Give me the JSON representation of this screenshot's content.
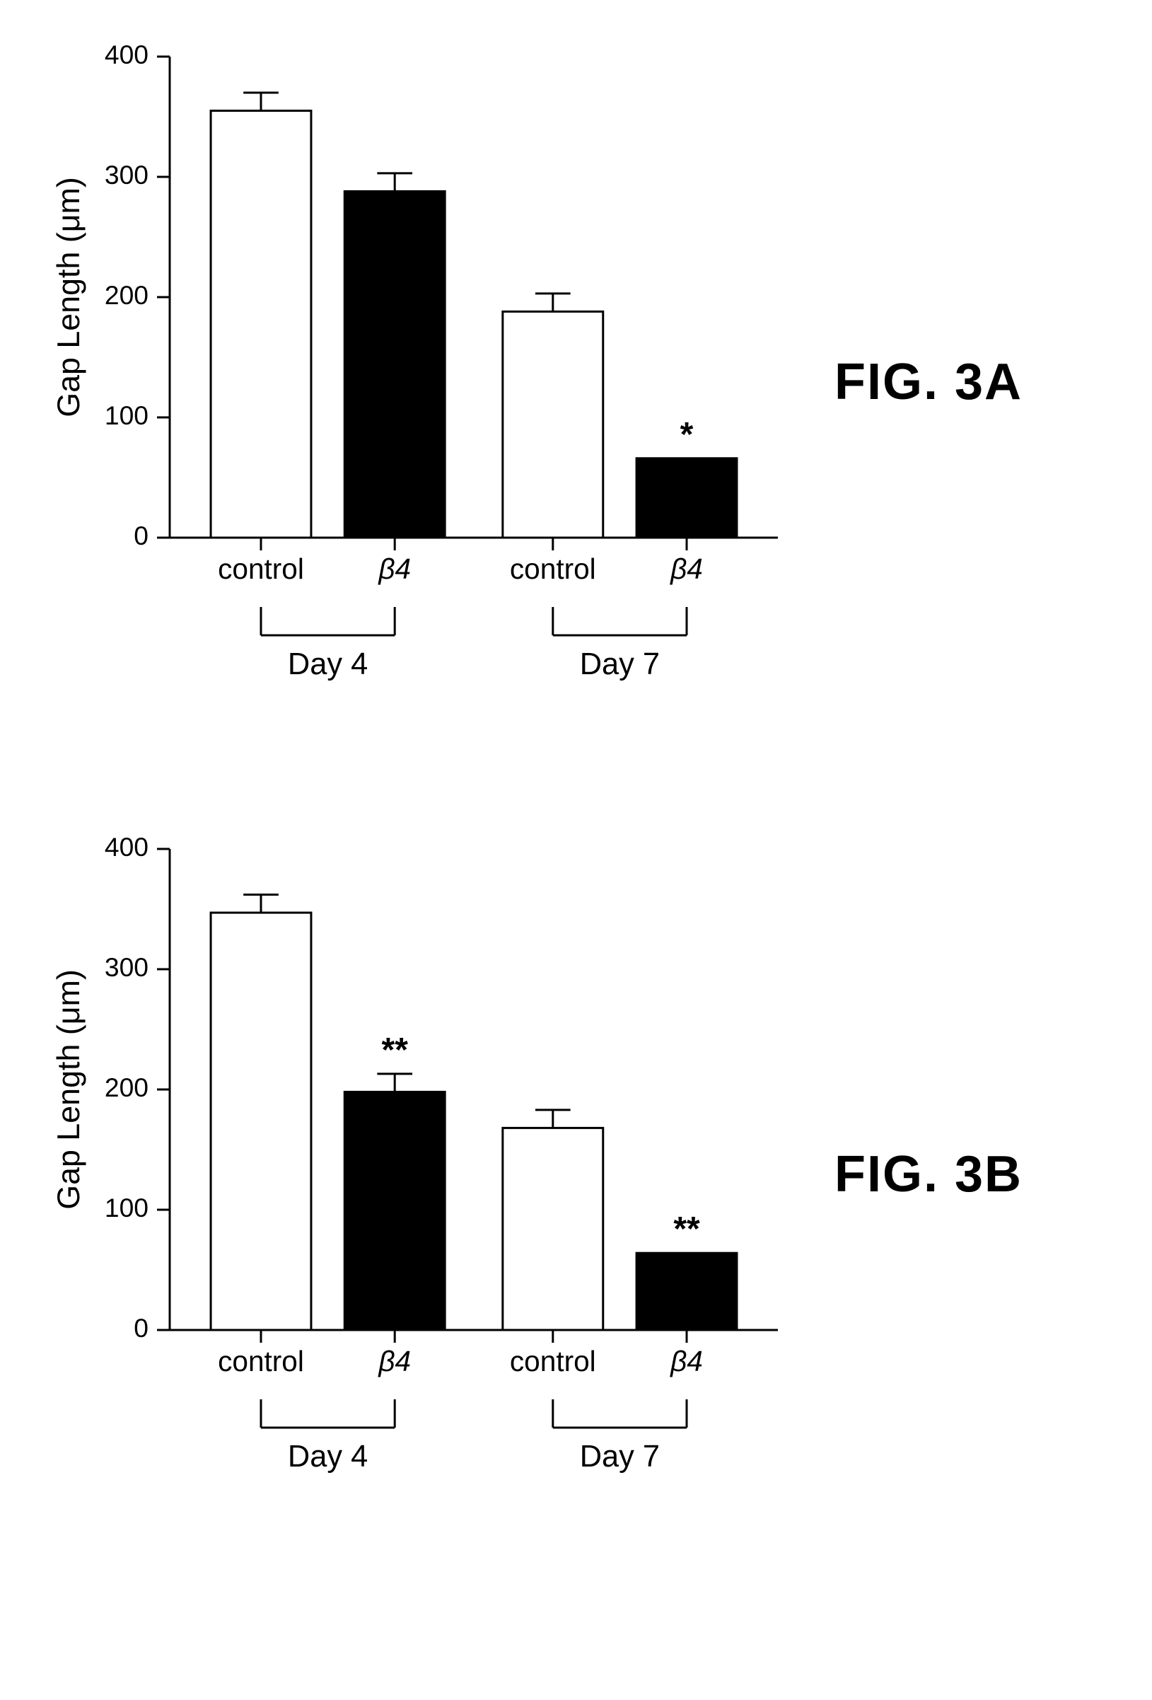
{
  "page": {
    "background_color": "#ffffff",
    "ink_color": "#000000",
    "font_family": "Helvetica, Arial, sans-serif"
  },
  "panels": [
    {
      "id": "A",
      "figure_label": "FIG. 3A",
      "chart": {
        "type": "bar",
        "ylabel": "Gap Length (μm)",
        "label_fontsize_pt": 28,
        "tick_fontsize_pt": 28,
        "ylim": [
          0,
          400
        ],
        "yticks": [
          0,
          100,
          200,
          300,
          400
        ],
        "bar_border_color": "#000000",
        "bar_border_width": 3,
        "axis_line_width": 3,
        "background_color": "#ffffff",
        "bars": [
          {
            "group": "Day 4",
            "label": "control",
            "value": 355,
            "error": 15,
            "fill_color": "#ffffff",
            "annotation": ""
          },
          {
            "group": "Day 4",
            "label": "β4",
            "value": 288,
            "error": 15,
            "fill_color": "#000000",
            "annotation": ""
          },
          {
            "group": "Day 7",
            "label": "control",
            "value": 188,
            "error": 15,
            "fill_color": "#ffffff",
            "annotation": ""
          },
          {
            "group": "Day 7",
            "label": "β4",
            "value": 66,
            "error": 0,
            "fill_color": "#000000",
            "annotation": "*"
          }
        ],
        "group_labels": [
          "Day 4",
          "Day 7"
        ],
        "annotation_fontsize_pt": 30
      }
    },
    {
      "id": "B",
      "figure_label": "FIG. 3B",
      "chart": {
        "type": "bar",
        "ylabel": "Gap Length (μm)",
        "label_fontsize_pt": 28,
        "tick_fontsize_pt": 28,
        "ylim": [
          0,
          400
        ],
        "yticks": [
          0,
          100,
          200,
          300,
          400
        ],
        "bar_border_color": "#000000",
        "bar_border_width": 3,
        "axis_line_width": 3,
        "background_color": "#ffffff",
        "bars": [
          {
            "group": "Day 4",
            "label": "control",
            "value": 347,
            "error": 15,
            "fill_color": "#ffffff",
            "annotation": ""
          },
          {
            "group": "Day 4",
            "label": "β4",
            "value": 198,
            "error": 15,
            "fill_color": "#000000",
            "annotation": "**"
          },
          {
            "group": "Day 7",
            "label": "control",
            "value": 168,
            "error": 15,
            "fill_color": "#ffffff",
            "annotation": ""
          },
          {
            "group": "Day 7",
            "label": "β4",
            "value": 64,
            "error": 0,
            "fill_color": "#000000",
            "annotation": "**"
          }
        ],
        "group_labels": [
          "Day 4",
          "Day 7"
        ],
        "annotation_fontsize_pt": 30
      }
    }
  ]
}
